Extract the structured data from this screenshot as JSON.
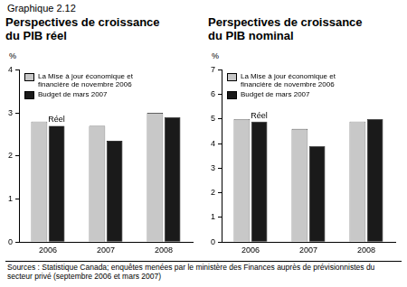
{
  "title": "Graphique 2.12",
  "source": "Sources : Statistique Canada; enquêtes menées par le ministère des Finances auprès de prévisionnistes du secteur privé (septembre 2006 et mars 2007)",
  "chart_data": [
    {
      "type": "bar",
      "title": "Perspectives de croissance du PIB réel",
      "y_label": "%",
      "categories": [
        "2006",
        "2007",
        "2008"
      ],
      "series": [
        {
          "name": "La Mise à jour économique et financière de novembre 2006",
          "color": "#c8c8c8",
          "values": [
            2.8,
            2.7,
            3.0
          ]
        },
        {
          "name": "Budget de mars 2007",
          "color": "#1a1a1a",
          "values": [
            2.7,
            2.35,
            2.9
          ]
        }
      ],
      "annotations": [
        {
          "text": "Réel",
          "category": "2006",
          "series": "Budget de mars 2007"
        }
      ],
      "ylim": [
        0,
        4
      ],
      "yticks": [
        0,
        1,
        2,
        3,
        4
      ],
      "grid": false,
      "legend": "upper left"
    },
    {
      "type": "bar",
      "title": "Perspectives de croissance du PIB nominal",
      "y_label": "%",
      "categories": [
        "2006",
        "2007",
        "2008"
      ],
      "series": [
        {
          "name": "La Mise à jour économique et financière de novembre 2006",
          "color": "#c8c8c8",
          "values": [
            5.0,
            4.6,
            4.9
          ]
        },
        {
          "name": "Budget de mars 2007",
          "color": "#1a1a1a",
          "values": [
            4.9,
            3.9,
            5.0
          ]
        }
      ],
      "annotations": [
        {
          "text": "Réel",
          "category": "2006",
          "series": "Budget de mars 2007"
        }
      ],
      "ylim": [
        0,
        7
      ],
      "yticks": [
        0,
        1,
        2,
        3,
        4,
        5,
        6,
        7
      ],
      "grid": false,
      "legend": "upper left"
    }
  ]
}
